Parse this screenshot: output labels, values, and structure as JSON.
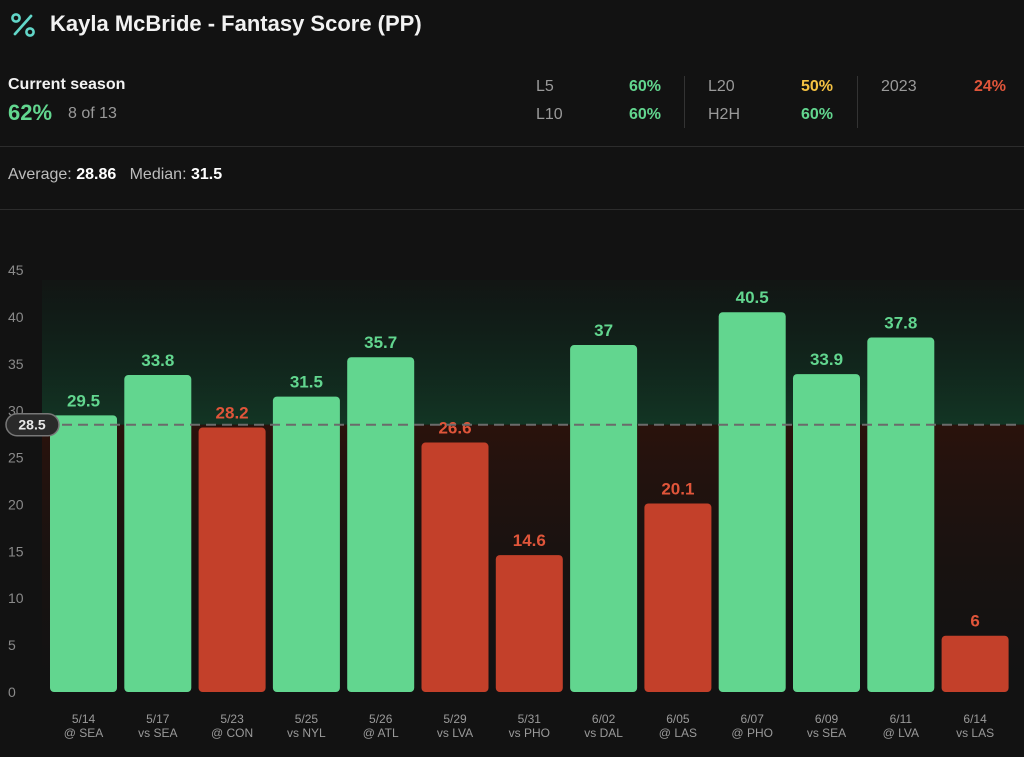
{
  "header": {
    "title": "Kayla McBride - Fantasy Score (PP)",
    "icon": "percent-icon"
  },
  "season": {
    "label": "Current season",
    "pct": "62%",
    "count": "8 of 13"
  },
  "splits": [
    {
      "label": "L5",
      "value": "60%",
      "color": "#62d68f"
    },
    {
      "label": "L10",
      "value": "60%",
      "color": "#62d68f"
    },
    {
      "label": "L20",
      "value": "50%",
      "color": "#f5c242"
    },
    {
      "label": "H2H",
      "value": "60%",
      "color": "#62d68f"
    },
    {
      "label": "2023",
      "value": "24%",
      "color": "#e0553a"
    }
  ],
  "summary": {
    "average_label": "Average:",
    "average_value": "28.86",
    "median_label": "Median:",
    "median_value": "31.5"
  },
  "colors": {
    "over": "#62d68f",
    "under": "#c3402a",
    "over_label": "#62d68f",
    "under_label": "#e0553a",
    "line": "#6b6b6b"
  },
  "chart_data": {
    "type": "bar",
    "line_value": 28.5,
    "line_label": "28.5",
    "ylim": [
      0,
      45
    ],
    "yticks": [
      0,
      5,
      10,
      15,
      20,
      25,
      30,
      35,
      40,
      45
    ],
    "categories": [
      {
        "date": "5/14",
        "opp": "@ SEA"
      },
      {
        "date": "5/17",
        "opp": "vs SEA"
      },
      {
        "date": "5/23",
        "opp": "@ CON"
      },
      {
        "date": "5/25",
        "opp": "vs NYL"
      },
      {
        "date": "5/26",
        "opp": "@ ATL"
      },
      {
        "date": "5/29",
        "opp": "vs LVA"
      },
      {
        "date": "5/31",
        "opp": "vs PHO"
      },
      {
        "date": "6/02",
        "opp": "vs DAL"
      },
      {
        "date": "6/05",
        "opp": "@ LAS"
      },
      {
        "date": "6/07",
        "opp": "@ PHO"
      },
      {
        "date": "6/09",
        "opp": "vs SEA"
      },
      {
        "date": "6/11",
        "opp": "@ LVA"
      },
      {
        "date": "6/14",
        "opp": "vs LAS"
      }
    ],
    "values": [
      29.5,
      33.8,
      28.2,
      31.5,
      35.7,
      26.6,
      14.6,
      37,
      20.1,
      40.5,
      33.9,
      37.8,
      6
    ],
    "value_labels": [
      "29.5",
      "33.8",
      "28.2",
      "31.5",
      "35.7",
      "26.6",
      "14.6",
      "37",
      "20.1",
      "40.5",
      "33.9",
      "37.8",
      "6"
    ]
  }
}
